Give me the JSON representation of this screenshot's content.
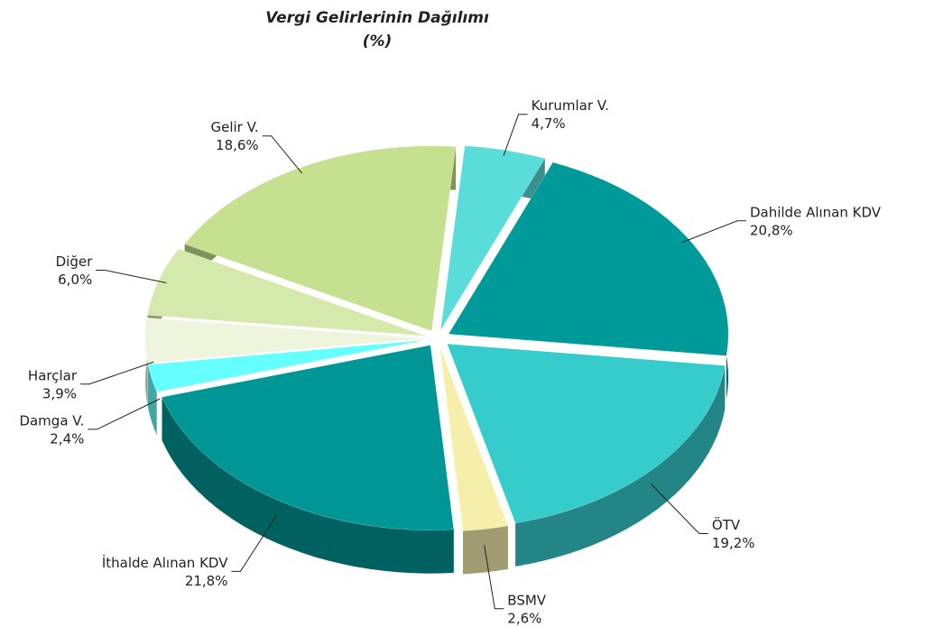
{
  "chart_data": {
    "type": "pie",
    "title": "Vergi Gelirlerinin Dağılımı",
    "subtitle": "(%)",
    "categories": [
      "Gelir V.",
      "Kurumlar V.",
      "Dahilde Alınan KDV",
      "ÖTV",
      "BSMV",
      "İthalde Alınan KDV",
      "Damga V.",
      "Harçlar",
      "Diğer"
    ],
    "values": [
      18.6,
      4.7,
      20.8,
      19.2,
      2.6,
      21.8,
      2.4,
      3.9,
      6.0
    ],
    "value_labels": [
      "18,6%",
      "4,7%",
      "20,8%",
      "19,2%",
      "2,6%",
      "21,8%",
      "2,4%",
      "3,9%",
      "6,0%"
    ],
    "colors": [
      "#c5e08e",
      "#5adcd8",
      "#009a9a",
      "#36cccc",
      "#f6efac",
      "#009696",
      "#66ffff",
      "#eef5dc",
      "#d6e9ad"
    ]
  }
}
